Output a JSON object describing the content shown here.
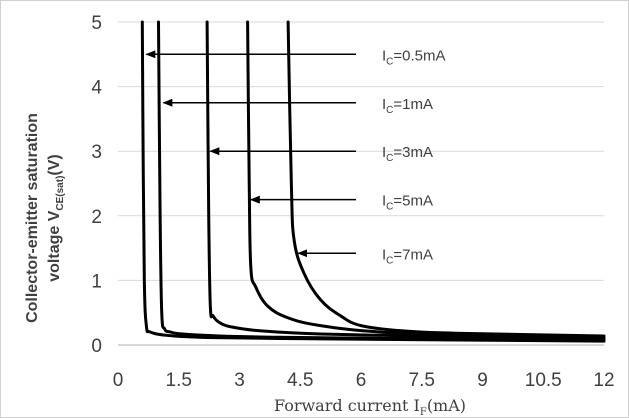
{
  "chart_data": {
    "type": "line",
    "xlabel": {
      "main": "Forward current I",
      "sub": "F",
      "unit": "(mA)"
    },
    "ylabel": {
      "line1": "Collector-emitter saturation",
      "line2_main": "voltage V",
      "line2_sub": "CE(sat)",
      "line2_unit": "(V)"
    },
    "xlim": [
      0,
      12
    ],
    "ylim": [
      0,
      5
    ],
    "xticks": [
      "0",
      "1.5",
      "3",
      "4.5",
      "6",
      "7.5",
      "9",
      "10.5",
      "12"
    ],
    "yticks": [
      "0",
      "1",
      "2",
      "3",
      "4",
      "5"
    ],
    "grid": "horizontal",
    "line_color": "#000000",
    "series": [
      {
        "name": "IC=0.5mA",
        "x": [
          0.6,
          0.62,
          0.65,
          0.7,
          0.8,
          1.2,
          2.0,
          4.0,
          8.0,
          12.0
        ],
        "y": [
          5.0,
          3.0,
          1.0,
          0.3,
          0.2,
          0.15,
          0.12,
          0.1,
          0.08,
          0.06
        ]
      },
      {
        "name": "IC=1mA",
        "x": [
          1.0,
          1.04,
          1.08,
          1.15,
          1.3,
          1.6,
          2.5,
          4.0,
          7.0,
          12.0
        ],
        "y": [
          5.0,
          2.0,
          0.5,
          0.25,
          0.2,
          0.17,
          0.14,
          0.12,
          0.1,
          0.08
        ]
      },
      {
        "name": "IC=3mA",
        "x": [
          2.2,
          2.24,
          2.28,
          2.35,
          2.5,
          2.8,
          3.5,
          5.0,
          8.0,
          12.0
        ],
        "y": [
          5.0,
          2.0,
          0.6,
          0.45,
          0.35,
          0.28,
          0.22,
          0.17,
          0.13,
          0.1
        ]
      },
      {
        "name": "IC=5mA",
        "x": [
          3.2,
          3.24,
          3.28,
          3.4,
          3.7,
          4.2,
          5.0,
          6.5,
          9.0,
          12.0
        ],
        "y": [
          5.0,
          2.5,
          1.2,
          0.9,
          0.6,
          0.42,
          0.3,
          0.2,
          0.15,
          0.12
        ]
      },
      {
        "name": "IC=7mA",
        "x": [
          4.2,
          4.28,
          4.35,
          4.6,
          5.0,
          5.5,
          6.0,
          7.0,
          8.5,
          12.0
        ],
        "y": [
          5.0,
          2.5,
          1.62,
          1.1,
          0.7,
          0.45,
          0.3,
          0.22,
          0.18,
          0.14
        ]
      }
    ],
    "annotations": [
      {
        "main": "I",
        "sub": "C",
        "rest": "=0.5mA",
        "tip": [
          0.7,
          4.5
        ]
      },
      {
        "main": "I",
        "sub": "C",
        "rest": "=1mA",
        "tip": [
          1.12,
          3.75
        ]
      },
      {
        "main": "I",
        "sub": "C",
        "rest": "=3mA",
        "tip": [
          2.28,
          3.0
        ]
      },
      {
        "main": "I",
        "sub": "C",
        "rest": "=5mA",
        "tip": [
          3.28,
          2.25
        ]
      },
      {
        "main": "I",
        "sub": "C",
        "rest": "=7mA",
        "tip": [
          4.45,
          1.42
        ]
      }
    ]
  }
}
